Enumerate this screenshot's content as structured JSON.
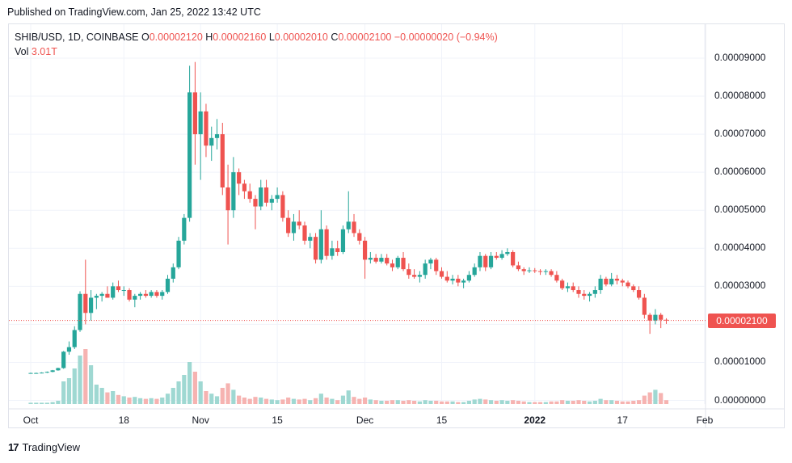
{
  "header": {
    "published": "Published on TradingView.com, Jan 25, 2022 13:42 UTC"
  },
  "legend": {
    "symbol": "SHIB/USD, 1D, COINBASE",
    "o_label": "O",
    "o_value": "0.00002120",
    "h_label": "H",
    "h_value": "0.00002160",
    "l_label": "L",
    "l_value": "0.00002010",
    "c_label": "C",
    "c_value": "0.00002100",
    "change": "−0.00000020 (−0.94%)",
    "vol_label": "Vol",
    "vol_value": "3.01T"
  },
  "last_price_tag": "0.00002100",
  "footer": {
    "brand": "TradingView",
    "logo": "17"
  },
  "colors": {
    "up": "#26a69a",
    "down": "#ef5350",
    "up_vol": "#9fd8d2",
    "down_vol": "#f6b3b1",
    "grid": "#f0f3fa"
  },
  "chart_data": {
    "type": "candlestick",
    "symbol": "SHIB/USD",
    "interval": "1D",
    "exchange": "COINBASE",
    "y_ticks": [
      "0.00009000",
      "0.00008000",
      "0.00007000",
      "0.00006000",
      "0.00005000",
      "0.00004000",
      "0.00003000",
      "0.00002000",
      "0.00001000",
      "0.00000000"
    ],
    "y_tick_values": [
      9e-05,
      8e-05,
      7e-05,
      6e-05,
      5e-05,
      4e-05,
      3e-05,
      2e-05,
      1e-05,
      0
    ],
    "ylim": [
      0,
      0.000101
    ],
    "x_ticks": [
      {
        "label": "Oct",
        "day": 0,
        "bold": false
      },
      {
        "label": "18",
        "day": 17,
        "bold": false
      },
      {
        "label": "Nov",
        "day": 31,
        "bold": false
      },
      {
        "label": "15",
        "day": 45,
        "bold": false
      },
      {
        "label": "Dec",
        "day": 61,
        "bold": false
      },
      {
        "label": "15",
        "day": 75,
        "bold": false
      },
      {
        "label": "2022",
        "day": 92,
        "bold": true
      },
      {
        "label": "17",
        "day": 108,
        "bold": false
      },
      {
        "label": "Feb",
        "day": 123,
        "bold": false
      }
    ],
    "x_start_date": "2021-09-30",
    "last_close": 2.1e-05,
    "candles": [
      [
        7.2e-06,
        7.3e-06,
        7.1e-06,
        7.2e-06,
        0.2
      ],
      [
        7.2e-06,
        7.3e-06,
        7.1e-06,
        7.2e-06,
        0.2
      ],
      [
        7.2e-06,
        7.4e-06,
        7.1e-06,
        7.3e-06,
        0.2
      ],
      [
        7.3e-06,
        7.6e-06,
        7.2e-06,
        7.5e-06,
        0.2
      ],
      [
        7.5e-06,
        8e-06,
        7.4e-06,
        7.9e-06,
        0.3
      ],
      [
        7.9e-06,
        8.6e-06,
        7.8e-06,
        8.5e-06,
        0.5
      ],
      [
        8.5e-06,
        1.3e-05,
        8.3e-06,
        1.28e-05,
        3.5
      ],
      [
        1.28e-05,
        1.55e-05,
        1.2e-05,
        1.4e-05,
        4.0
      ],
      [
        1.4e-05,
        1.95e-05,
        1.35e-05,
        1.85e-05,
        5.5
      ],
      [
        1.85e-05,
        2.87e-05,
        1.8e-05,
        2.8e-05,
        7.5
      ],
      [
        2.8e-05,
        3.7e-05,
        2e-05,
        2.3e-05,
        8.5
      ],
      [
        2.3e-05,
        2.9e-05,
        2.1e-05,
        2.7e-05,
        6.0
      ],
      [
        2.7e-05,
        2.8e-05,
        2.4e-05,
        2.75e-05,
        3.0
      ],
      [
        2.75e-05,
        2.85e-05,
        2.6e-05,
        2.8e-05,
        2.5
      ],
      [
        2.8e-05,
        3e-05,
        2.7e-05,
        2.7e-05,
        1.8
      ],
      [
        2.7e-05,
        3.1e-05,
        2.65e-05,
        3e-05,
        2.0
      ],
      [
        3e-05,
        3.15e-05,
        2.85e-05,
        2.9e-05,
        1.4
      ],
      [
        2.9e-05,
        3e-05,
        2.75e-05,
        2.9e-05,
        1.2
      ],
      [
        2.9e-05,
        2.95e-05,
        2.6e-05,
        2.65e-05,
        1.0
      ],
      [
        2.65e-05,
        2.8e-05,
        2.45e-05,
        2.75e-05,
        1.1
      ],
      [
        2.75e-05,
        2.85e-05,
        2.65e-05,
        2.8e-05,
        0.9
      ],
      [
        2.8e-05,
        2.9e-05,
        2.7e-05,
        2.75e-05,
        0.8
      ],
      [
        2.75e-05,
        2.9e-05,
        2.7e-05,
        2.85e-05,
        0.9
      ],
      [
        2.85e-05,
        2.9e-05,
        2.7e-05,
        2.75e-05,
        0.8
      ],
      [
        2.75e-05,
        2.9e-05,
        2.65e-05,
        2.85e-05,
        1.0
      ],
      [
        2.85e-05,
        3.3e-05,
        2.8e-05,
        3.2e-05,
        1.6
      ],
      [
        3.2e-05,
        3.6e-05,
        3.1e-05,
        3.5e-05,
        2.5
      ],
      [
        3.5e-05,
        4.3e-05,
        3.45e-05,
        4.2e-05,
        3.5
      ],
      [
        4.2e-05,
        4.9e-05,
        4.1e-05,
        4.8e-05,
        4.5
      ],
      [
        4.8e-05,
        8.8e-05,
        4.7e-05,
        8.1e-05,
        6.5
      ],
      [
        8.1e-05,
        8.9e-05,
        6.2e-05,
        7e-05,
        5.0
      ],
      [
        7e-05,
        8.1e-05,
        5.8e-05,
        7.6e-05,
        3.5
      ],
      [
        7.6e-05,
        7.8e-05,
        6.4e-05,
        6.7e-05,
        2.0
      ],
      [
        6.7e-05,
        7.2e-05,
        6.3e-05,
        6.9e-05,
        1.6
      ],
      [
        6.9e-05,
        7.4e-05,
        6.6e-05,
        7e-05,
        1.2
      ],
      [
        7e-05,
        7.3e-05,
        5.4e-05,
        5.6e-05,
        2.5
      ],
      [
        5.6e-05,
        6.2e-05,
        4.1e-05,
        5e-05,
        3.2
      ],
      [
        5e-05,
        6.4e-05,
        4.8e-05,
        6e-05,
        2.2
      ],
      [
        6e-05,
        6.1e-05,
        5.4e-05,
        5.7e-05,
        1.3
      ],
      [
        5.7e-05,
        5.8e-05,
        5.3e-05,
        5.5e-05,
        1.0
      ],
      [
        5.5e-05,
        5.7e-05,
        5.2e-05,
        5.3e-05,
        0.8
      ],
      [
        5.3e-05,
        5.4e-05,
        4.5e-05,
        5.1e-05,
        1.1
      ],
      [
        5.1e-05,
        5.8e-05,
        5e-05,
        5.6e-05,
        1.0
      ],
      [
        5.6e-05,
        5.8e-05,
        5.1e-05,
        5.2e-05,
        0.8
      ],
      [
        5.2e-05,
        5.4e-05,
        5e-05,
        5.3e-05,
        0.7
      ],
      [
        5.3e-05,
        5.6e-05,
        5.2e-05,
        5.4e-05,
        0.6
      ],
      [
        5.4e-05,
        5.5e-05,
        4.7e-05,
        4.8e-05,
        0.7
      ],
      [
        4.8e-05,
        5e-05,
        4.3e-05,
        4.4e-05,
        1.0
      ],
      [
        4.4e-05,
        4.9e-05,
        4.2e-05,
        4.7e-05,
        0.8
      ],
      [
        4.7e-05,
        5e-05,
        4.5e-05,
        4.6e-05,
        0.7
      ],
      [
        4.6e-05,
        4.7e-05,
        4.1e-05,
        4.2e-05,
        0.8
      ],
      [
        4.2e-05,
        4.4e-05,
        4e-05,
        4.3e-05,
        0.6
      ],
      [
        4.3e-05,
        4.4e-05,
        3.6e-05,
        3.7e-05,
        0.9
      ],
      [
        3.7e-05,
        5e-05,
        3.6e-05,
        4.5e-05,
        1.6
      ],
      [
        4.5e-05,
        4.6e-05,
        3.7e-05,
        3.8e-05,
        1.0
      ],
      [
        3.8e-05,
        4.2e-05,
        3.7e-05,
        4e-05,
        0.8
      ],
      [
        4e-05,
        4.2e-05,
        3.8e-05,
        3.9e-05,
        0.6
      ],
      [
        3.9e-05,
        4.6e-05,
        3.85e-05,
        4.5e-05,
        1.3
      ],
      [
        4.5e-05,
        5.5e-05,
        4.4e-05,
        4.7e-05,
        2.1
      ],
      [
        4.7e-05,
        4.9e-05,
        4.3e-05,
        4.4e-05,
        1.1
      ],
      [
        4.4e-05,
        4.5e-05,
        4.1e-05,
        4.2e-05,
        0.8
      ],
      [
        4.2e-05,
        4.3e-05,
        3.2e-05,
        3.7e-05,
        1.0
      ],
      [
        3.7e-05,
        3.9e-05,
        3.6e-05,
        3.75e-05,
        0.7
      ],
      [
        3.75e-05,
        3.85e-05,
        3.6e-05,
        3.65e-05,
        0.6
      ],
      [
        3.65e-05,
        3.85e-05,
        3.6e-05,
        3.75e-05,
        0.5
      ],
      [
        3.75e-05,
        3.85e-05,
        3.55e-05,
        3.6e-05,
        0.5
      ],
      [
        3.6e-05,
        3.7e-05,
        3.4e-05,
        3.5e-05,
        0.6
      ],
      [
        3.5e-05,
        3.8e-05,
        3.45e-05,
        3.75e-05,
        0.6
      ],
      [
        3.75e-05,
        3.9e-05,
        3.4e-05,
        3.45e-05,
        0.5
      ],
      [
        3.45e-05,
        3.6e-05,
        3.2e-05,
        3.3e-05,
        0.6
      ],
      [
        3.3e-05,
        3.45e-05,
        3.2e-05,
        3.25e-05,
        0.5
      ],
      [
        3.25e-05,
        3.4e-05,
        3.1e-05,
        3.3e-05,
        0.4
      ],
      [
        3.3e-05,
        3.7e-05,
        3.2e-05,
        3.6e-05,
        0.6
      ],
      [
        3.6e-05,
        3.75e-05,
        3.45e-05,
        3.7e-05,
        0.5
      ],
      [
        3.7e-05,
        3.75e-05,
        3.3e-05,
        3.4e-05,
        0.5
      ],
      [
        3.4e-05,
        3.5e-05,
        3.2e-05,
        3.25e-05,
        0.4
      ],
      [
        3.25e-05,
        3.4e-05,
        3.1e-05,
        3.15e-05,
        0.4
      ],
      [
        3.15e-05,
        3.3e-05,
        3.05e-05,
        3.2e-05,
        0.4
      ],
      [
        3.2e-05,
        3.3e-05,
        3e-05,
        3.1e-05,
        0.3
      ],
      [
        3.1e-05,
        3.2e-05,
        2.95e-05,
        3.15e-05,
        0.3
      ],
      [
        3.15e-05,
        3.4e-05,
        3.1e-05,
        3.3e-05,
        0.5
      ],
      [
        3.3e-05,
        3.6e-05,
        3.25e-05,
        3.5e-05,
        0.7
      ],
      [
        3.5e-05,
        3.9e-05,
        3.4e-05,
        3.8e-05,
        0.8
      ],
      [
        3.8e-05,
        3.85e-05,
        3.4e-05,
        3.5e-05,
        0.7
      ],
      [
        3.5e-05,
        3.9e-05,
        3.45e-05,
        3.8e-05,
        0.6
      ],
      [
        3.8e-05,
        3.9e-05,
        3.7e-05,
        3.75e-05,
        0.5
      ],
      [
        3.75e-05,
        3.95e-05,
        3.7e-05,
        3.85e-05,
        0.6
      ],
      [
        3.85e-05,
        4e-05,
        3.8e-05,
        3.9e-05,
        0.5
      ],
      [
        3.9e-05,
        3.95e-05,
        3.5e-05,
        3.55e-05,
        0.6
      ],
      [
        3.55e-05,
        3.65e-05,
        3.4e-05,
        3.45e-05,
        0.5
      ],
      [
        3.45e-05,
        3.5e-05,
        3.3e-05,
        3.4e-05,
        0.4
      ],
      [
        3.4e-05,
        3.5e-05,
        3.35e-05,
        3.42e-05,
        0.3
      ],
      [
        3.42e-05,
        3.48e-05,
        3.35e-05,
        3.4e-05,
        0.3
      ],
      [
        3.4e-05,
        3.45e-05,
        3.3e-05,
        3.38e-05,
        0.3
      ],
      [
        3.38e-05,
        3.45e-05,
        3.3e-05,
        3.4e-05,
        0.3
      ],
      [
        3.4e-05,
        3.45e-05,
        3.25e-05,
        3.3e-05,
        0.4
      ],
      [
        3.3e-05,
        3.4e-05,
        3.1e-05,
        3.15e-05,
        0.4
      ],
      [
        3.15e-05,
        3.2e-05,
        2.9e-05,
        2.95e-05,
        0.6
      ],
      [
        2.95e-05,
        3.1e-05,
        2.85e-05,
        3e-05,
        0.5
      ],
      [
        3e-05,
        3.1e-05,
        2.85e-05,
        2.9e-05,
        0.5
      ],
      [
        2.9e-05,
        3e-05,
        2.7e-05,
        2.8e-05,
        0.6
      ],
      [
        2.8e-05,
        2.9e-05,
        2.65e-05,
        2.75e-05,
        0.5
      ],
      [
        2.75e-05,
        2.85e-05,
        2.6e-05,
        2.8e-05,
        0.4
      ],
      [
        2.8e-05,
        3e-05,
        2.7e-05,
        2.9e-05,
        0.5
      ],
      [
        2.9e-05,
        3.3e-05,
        2.8e-05,
        3.2e-05,
        0.8
      ],
      [
        3.2e-05,
        3.25e-05,
        3e-05,
        3.05e-05,
        0.6
      ],
      [
        3.05e-05,
        3.35e-05,
        3e-05,
        3.2e-05,
        0.6
      ],
      [
        3.2e-05,
        3.3e-05,
        3.05e-05,
        3.15e-05,
        0.5
      ],
      [
        3.15e-05,
        3.2e-05,
        3e-05,
        3.1e-05,
        0.4
      ],
      [
        3.1e-05,
        3.15e-05,
        2.95e-05,
        3e-05,
        0.4
      ],
      [
        3e-05,
        3.05e-05,
        2.85e-05,
        2.9e-05,
        0.5
      ],
      [
        2.9e-05,
        3e-05,
        2.65e-05,
        2.7e-05,
        0.6
      ],
      [
        2.7e-05,
        2.8e-05,
        2.15e-05,
        2.25e-05,
        1.3
      ],
      [
        2.25e-05,
        2.3e-05,
        1.75e-05,
        2.1e-05,
        1.8
      ],
      [
        2.1e-05,
        2.4e-05,
        2e-05,
        2.25e-05,
        2.2
      ],
      [
        2.25e-05,
        2.3e-05,
        1.9e-05,
        2.12e-05,
        1.7
      ],
      [
        2.12e-05,
        2.16e-05,
        2.01e-05,
        2.1e-05,
        0.6
      ]
    ]
  }
}
